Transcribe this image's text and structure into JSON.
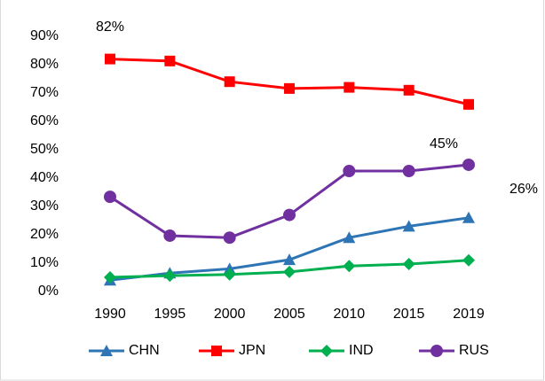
{
  "chart_data": {
    "type": "line",
    "categories": [
      "1990",
      "1995",
      "2000",
      "2005",
      "2010",
      "2015",
      "2019"
    ],
    "series": [
      {
        "name": "CHN",
        "color": "#2e75b6",
        "marker": "triangle",
        "values": [
          4,
          6.5,
          8,
          11.2,
          19,
          23,
          26
        ],
        "value_labels": [
          null,
          null,
          null,
          null,
          null,
          null,
          "26%"
        ]
      },
      {
        "name": "JPN",
        "color": "#ff0000",
        "marker": "square",
        "values": [
          82,
          81.3,
          74,
          71.6,
          72,
          71,
          66
        ],
        "value_labels": [
          "82%",
          null,
          null,
          null,
          null,
          null,
          null
        ]
      },
      {
        "name": "IND",
        "color": "#00b050",
        "marker": "diamond",
        "values": [
          5,
          5.6,
          6,
          6.9,
          9,
          9.7,
          11
        ],
        "value_labels": [
          null,
          null,
          null,
          null,
          null,
          null,
          null
        ]
      },
      {
        "name": "RUS",
        "color": "#7030a0",
        "marker": "circle",
        "values": [
          33.4,
          19.7,
          19,
          27,
          42.5,
          42.5,
          44.7
        ],
        "value_labels": [
          null,
          null,
          null,
          null,
          null,
          null,
          "45%"
        ]
      }
    ],
    "ylim": [
      0,
      90
    ],
    "yticks": [
      {
        "value": 0,
        "label": "0%"
      },
      {
        "value": 10,
        "label": "10%"
      },
      {
        "value": 20,
        "label": "20%"
      },
      {
        "value": 30,
        "label": "30%"
      },
      {
        "value": 40,
        "label": "40%"
      },
      {
        "value": 50,
        "label": "50%"
      },
      {
        "value": 60,
        "label": "60%"
      },
      {
        "value": 70,
        "label": "70%"
      },
      {
        "value": 80,
        "label": "80%"
      },
      {
        "value": 90,
        "label": "90%"
      }
    ],
    "grid": false,
    "legend": "bottom"
  }
}
